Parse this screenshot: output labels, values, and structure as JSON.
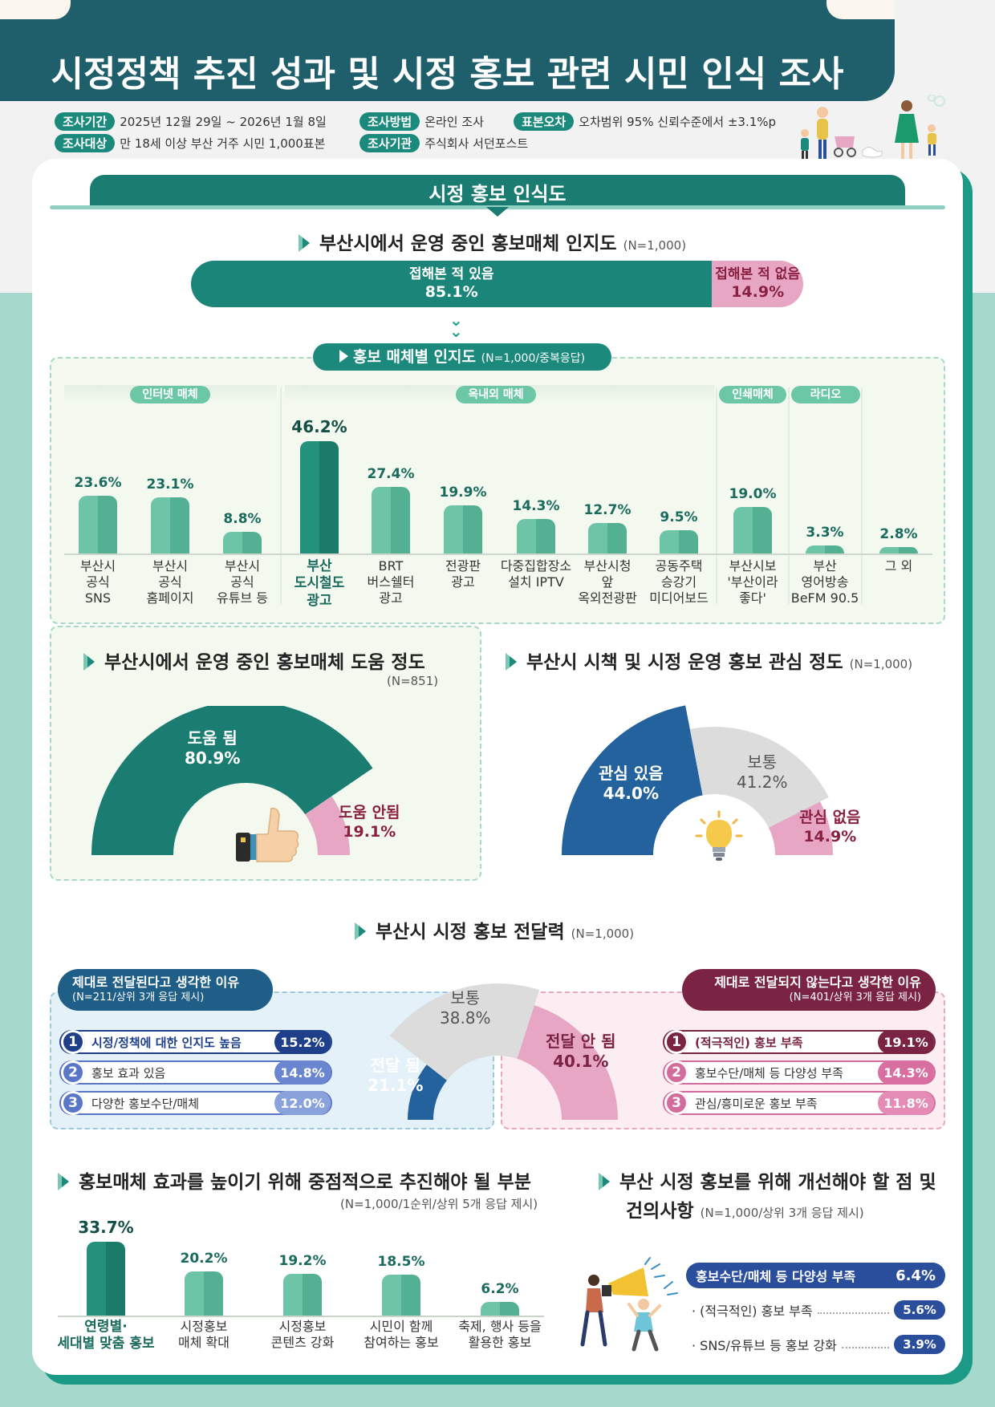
{
  "header": {
    "title": "시정정책 추진 성과 및 시정 홍보 관련 시민 인식 조사"
  },
  "survey_info": [
    {
      "tag": "조사기간",
      "text": "2025년 12월 29일 ~ 2026년 1월 8일"
    },
    {
      "tag": "조사방법",
      "text": "온라인 조사"
    },
    {
      "tag": "표본오차",
      "text": "오차범위 95% 신뢰수준에서 ±3.1%p"
    },
    {
      "tag": "조사대상",
      "text": "만 18세 이상 부산 거주 시민 1,000표본"
    },
    {
      "tag": "조사기관",
      "text": "주식회사 서던포스트"
    }
  ],
  "section": {
    "title": "시정 홍보 인식도"
  },
  "colors": {
    "teal_dark": "#1b7d72",
    "teal": "#1b8a7c",
    "mint": "#6dc4a7",
    "pink": "#e7a7c4",
    "blue": "#23629c",
    "gray": "#dcdcdc",
    "navy": "#2a4d9c",
    "maroon": "#7a2343"
  },
  "chart_data": [
    {
      "type": "bar",
      "id": "awareness",
      "title": "부산시에서 운영 중인 홍보매체 인지도",
      "n": "(N=1,000)",
      "categories": [
        "접해본 적 있음",
        "접해본 적 없음"
      ],
      "values": [
        85.1,
        14.9
      ],
      "value_labels": [
        "85.1%",
        "14.9%"
      ]
    },
    {
      "type": "bar",
      "id": "media",
      "title": "홍보 매체별 인지도",
      "n": "(N=1,000/중복응답)",
      "groups": [
        "인터넷 매체",
        "옥내외 매체",
        "인쇄매체",
        "라디오"
      ],
      "categories": [
        "부산시\n공식\nSNS",
        "부산시\n공식\n홈페이지",
        "부산시\n공식\n유튜브 등",
        "부산\n도시철도\n광고",
        "BRT\n버스쉘터\n광고",
        "전광판\n광고",
        "다중집합장소\n설치 IPTV",
        "부산시청\n앞\n옥외전광판",
        "공동주택\n승강기\n미디어보드",
        "부산시보\n'부산이라\n좋다'",
        "부산\n영어방송\nBeFM 90.5",
        "그 외"
      ],
      "values": [
        23.6,
        23.1,
        8.8,
        46.2,
        27.4,
        19.9,
        14.3,
        12.7,
        9.5,
        19.0,
        3.3,
        2.8
      ],
      "value_labels": [
        "23.6%",
        "23.1%",
        "8.8%",
        "46.2%",
        "27.4%",
        "19.9%",
        "14.3%",
        "12.7%",
        "9.5%",
        "19.0%",
        "3.3%",
        "2.8%"
      ],
      "ylim": [
        0,
        50
      ]
    },
    {
      "type": "pie",
      "id": "helpfulness",
      "title": "부산시에서 운영 중인 홍보매체 도움 정도",
      "n": "(N=851)",
      "categories": [
        "도움 됨",
        "도움 안됨"
      ],
      "values": [
        80.9,
        19.1
      ],
      "value_labels": [
        "80.9%",
        "19.1%"
      ]
    },
    {
      "type": "pie",
      "id": "interest",
      "title": "부산시 시책 및 시정 운영 홍보 관심 정도",
      "n": "(N=1,000)",
      "categories": [
        "관심 있음",
        "보통",
        "관심 없음"
      ],
      "values": [
        44.0,
        41.2,
        14.9
      ],
      "value_labels": [
        "44.0%",
        "41.2%",
        "14.9%"
      ]
    },
    {
      "type": "pie",
      "id": "delivery",
      "title": "부산시 시정 홍보 전달력",
      "n": "(N=1,000)",
      "categories": [
        "전달 됨",
        "보통",
        "전달 안 됨"
      ],
      "values": [
        21.1,
        38.8,
        40.1
      ],
      "value_labels": [
        "21.1%",
        "38.8%",
        "40.1%"
      ]
    },
    {
      "type": "bar",
      "id": "priority",
      "title": "홍보매체 효과를 높이기 위해 중점적으로 추진해야 될 부분",
      "n": "(N=1,000/1순위/상위 5개 응답 제시)",
      "categories": [
        "연령별·\n세대별 맞춤 홍보",
        "시정홍보\n매체 확대",
        "시정홍보\n콘텐츠 강화",
        "시민이 함께\n참여하는 홍보",
        "축제, 행사 등을\n활용한 홍보"
      ],
      "values": [
        33.7,
        20.2,
        19.2,
        18.5,
        6.2
      ],
      "value_labels": [
        "33.7%",
        "20.2%",
        "19.2%",
        "18.5%",
        "6.2%"
      ],
      "ylim": [
        0,
        35
      ]
    }
  ],
  "delivery_reasons": {
    "positive": {
      "title": "제대로 전달된다고 생각한 이유",
      "n": "(N=211/상위 3개 응답 제시)",
      "items": [
        {
          "rank": "1",
          "text": "시정/정책에 대한 인지도 높음",
          "pct": "15.2%"
        },
        {
          "rank": "2",
          "text": "홍보 효과 있음",
          "pct": "14.8%"
        },
        {
          "rank": "3",
          "text": "다양한 홍보수단/매체",
          "pct": "12.0%"
        }
      ]
    },
    "negative": {
      "title": "제대로 전달되지 않는다고 생각한 이유",
      "n": "(N=401/상위 3개 응답 제시)",
      "items": [
        {
          "rank": "1",
          "text": "(적극적인) 홍보 부족",
          "pct": "19.1%"
        },
        {
          "rank": "2",
          "text": "홍보수단/매체 등 다양성 부족",
          "pct": "14.3%"
        },
        {
          "rank": "3",
          "text": "관심/흥미로운 홍보 부족",
          "pct": "11.8%"
        }
      ]
    }
  },
  "suggestions": {
    "title_line1": "부산 시정 홍보를 위해 개선해야 할 점 및",
    "title_line2": "건의사항",
    "n": "(N=1,000/상위 3개 응답 제시)",
    "items": [
      {
        "text": "홍보수단/매체 등 다양성 부족",
        "pct": "6.4%"
      },
      {
        "text": "· (적극적인) 홍보 부족",
        "pct": "5.6%"
      },
      {
        "text": "· SNS/유튜브 등 홍보 강화",
        "pct": "3.9%"
      }
    ]
  },
  "icons": [
    "thumbs-up-icon",
    "light-bulb-icon",
    "megaphone-icon",
    "family-illustration"
  ]
}
